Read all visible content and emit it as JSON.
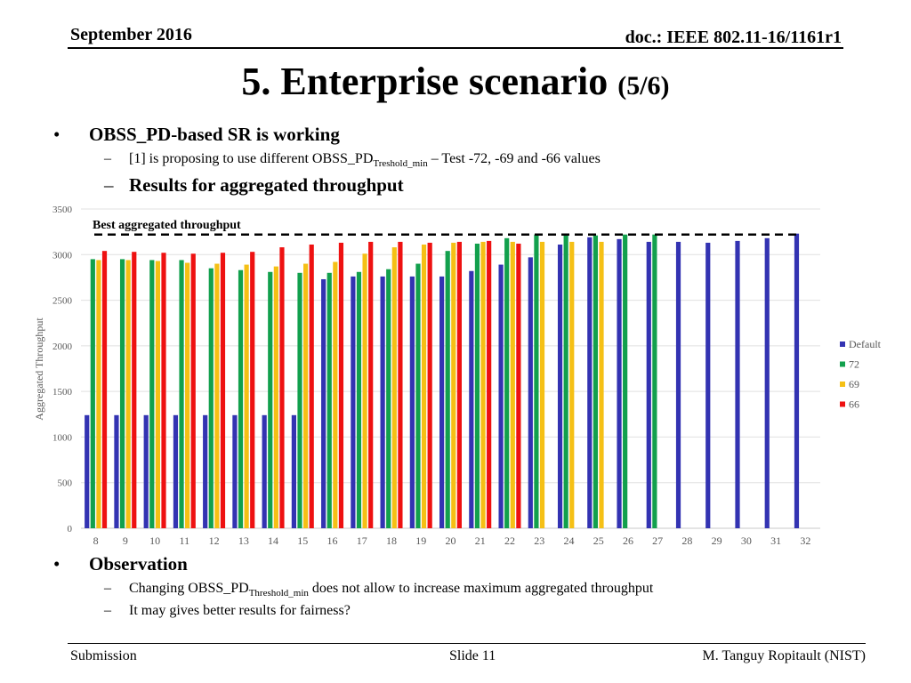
{
  "header": {
    "date": "September 2016",
    "doc": "doc.: IEEE 802.11-16/1161r1"
  },
  "title": {
    "main": "5. Enterprise scenario",
    "sub": "(5/6)"
  },
  "bullets": {
    "b1": "OBSS_PD-based SR is working",
    "b2_pre": "[1] is proposing to use different OBSS_PD",
    "b2_sub": "Treshold_min",
    "b2_post": " – Test -72, -69 and -66 values",
    "b3": "Results for aggregated throughput",
    "b4": "Observation",
    "b5_pre": "Changing OBSS_PD",
    "b5_sub": "Threshold_min",
    "b5_post": " does not allow to increase maximum aggregated throughput",
    "b6": "It may gives better results for fairness?",
    "bullet_symbol": "•",
    "dash_symbol": "–"
  },
  "footer": {
    "left": "Submission",
    "center": "Slide 11",
    "right": "M. Tanguy Ropitault (NIST)"
  },
  "chart_data": {
    "type": "bar",
    "ylabel": "Aggregated Throughput",
    "xlabel": "",
    "ylim": [
      0,
      3500
    ],
    "yticks": [
      0,
      500,
      1000,
      1500,
      2000,
      2500,
      3000,
      3500
    ],
    "grid": true,
    "legend_position": "right",
    "categories": [
      "8",
      "9",
      "10",
      "11",
      "12",
      "13",
      "14",
      "15",
      "16",
      "17",
      "18",
      "19",
      "20",
      "21",
      "22",
      "23",
      "24",
      "25",
      "26",
      "27",
      "28",
      "29",
      "30",
      "31",
      "32"
    ],
    "series": [
      {
        "name": "Default",
        "color": "#3333b2",
        "values": [
          1240,
          1240,
          1240,
          1240,
          1240,
          1240,
          1240,
          1240,
          2730,
          2760,
          2760,
          2760,
          2760,
          2820,
          2890,
          2970,
          3110,
          3190,
          3170,
          3140,
          3140,
          3130,
          3150,
          3180,
          3230
        ]
      },
      {
        "name": "72",
        "color": "#12a04d",
        "values": [
          2950,
          2950,
          2940,
          2940,
          2850,
          2830,
          2810,
          2800,
          2800,
          2810,
          2840,
          2900,
          3040,
          3120,
          3180,
          3220,
          3220,
          3210,
          3220,
          3220,
          null,
          null,
          null,
          null,
          null
        ]
      },
      {
        "name": "69",
        "color": "#f5c015",
        "values": [
          2940,
          2940,
          2930,
          2910,
          2900,
          2890,
          2870,
          2900,
          2920,
          3010,
          3080,
          3110,
          3130,
          3140,
          3140,
          3140,
          3140,
          3140,
          null,
          null,
          null,
          null,
          null,
          null,
          null
        ]
      },
      {
        "name": "66",
        "color": "#ee1111",
        "values": [
          3040,
          3030,
          3020,
          3010,
          3020,
          3030,
          3080,
          3110,
          3130,
          3140,
          3140,
          3130,
          3140,
          3150,
          3120,
          null,
          null,
          null,
          null,
          null,
          null,
          null,
          null,
          null,
          null
        ]
      }
    ],
    "reference_line": {
      "value": 3220,
      "label": "Best aggregated throughput",
      "style": "dashed",
      "color": "#000000"
    }
  }
}
